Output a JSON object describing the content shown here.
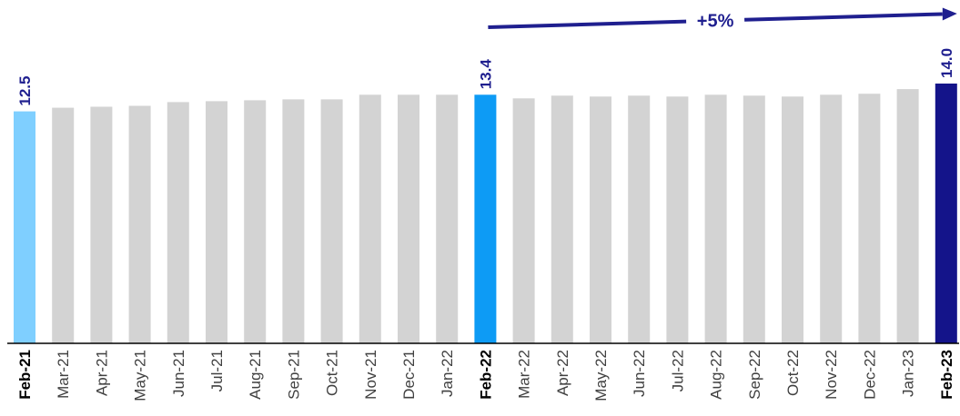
{
  "chart_data": {
    "type": "bar",
    "categories": [
      "Feb-21",
      "Mar-21",
      "Apr-21",
      "May-21",
      "Jun-21",
      "Jul-21",
      "Aug-21",
      "Sep-21",
      "Oct-21",
      "Nov-21",
      "Dec-21",
      "Jan-22",
      "Feb-22",
      "Mar-22",
      "Apr-22",
      "May-22",
      "Jun-22",
      "Jul-22",
      "Aug-22",
      "Sep-22",
      "Oct-22",
      "Nov-22",
      "Dec-22",
      "Jan-23",
      "Feb-23"
    ],
    "values": [
      12.5,
      12.7,
      12.75,
      12.8,
      13.0,
      13.05,
      13.1,
      13.15,
      13.15,
      13.4,
      13.4,
      13.4,
      13.4,
      13.2,
      13.35,
      13.3,
      13.35,
      13.3,
      13.4,
      13.35,
      13.3,
      13.4,
      13.45,
      13.7,
      14.0
    ],
    "bold_categories": [
      "Feb-21",
      "Feb-22",
      "Feb-23"
    ],
    "data_labels": [
      {
        "category": "Feb-21",
        "text": "12.5"
      },
      {
        "category": "Feb-22",
        "text": "13.4"
      },
      {
        "category": "Feb-23",
        "text": "14.0"
      }
    ],
    "annotation": {
      "text": "+5%",
      "from": "Feb-22",
      "to": "Feb-23"
    },
    "ylim": [
      0,
      14.0
    ],
    "grid": false,
    "title": "",
    "xlabel": "",
    "ylabel": ""
  },
  "colors": {
    "default_bar": "#d3d3d3",
    "feb21_bar": "#7fcfff",
    "feb22_bar": "#0d9bf5",
    "feb23_bar": "#14148a",
    "annotation": "#1f1f8f",
    "axis": "#000000"
  }
}
